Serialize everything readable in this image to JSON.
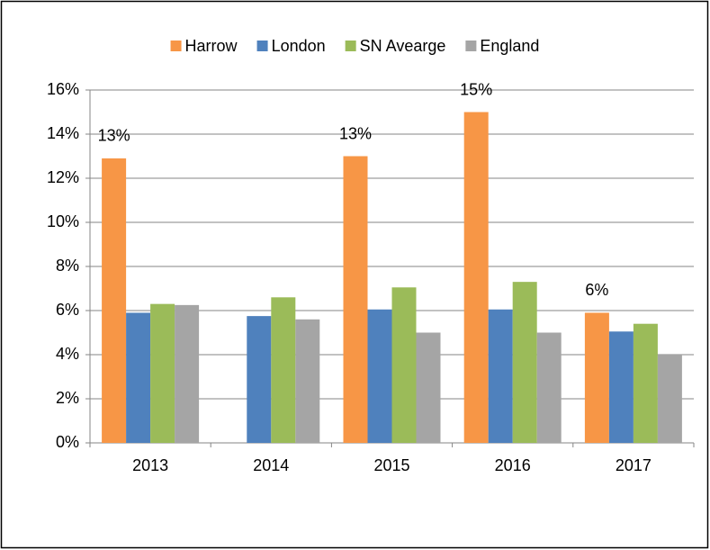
{
  "chart_data": {
    "type": "bar",
    "categories": [
      "2013",
      "2014",
      "2015",
      "2016",
      "2017"
    ],
    "series": [
      {
        "name": "Harrow",
        "color": "#f79646",
        "values": [
          12.9,
          null,
          13.0,
          15.0,
          5.9
        ],
        "value_labels": [
          "13%",
          null,
          "13%",
          "15%",
          "6%"
        ]
      },
      {
        "name": "London",
        "color": "#4f81bd",
        "values": [
          5.9,
          5.75,
          6.05,
          6.05,
          5.05
        ]
      },
      {
        "name": "SN Avearge",
        "color": "#9bbb59",
        "values": [
          6.3,
          6.6,
          7.05,
          7.3,
          5.4
        ]
      },
      {
        "name": "England",
        "color": "#a5a5a5",
        "values": [
          6.25,
          5.6,
          5.0,
          5.0,
          4.0
        ]
      }
    ],
    "ylim": [
      0,
      16
    ],
    "yticks": [
      {
        "value": 0,
        "label": "0%"
      },
      {
        "value": 2,
        "label": "2%"
      },
      {
        "value": 4,
        "label": "4%"
      },
      {
        "value": 6,
        "label": "6%"
      },
      {
        "value": 8,
        "label": "8%"
      },
      {
        "value": 10,
        "label": "10%"
      },
      {
        "value": 12,
        "label": "12%"
      },
      {
        "value": 14,
        "label": "14%"
      },
      {
        "value": 16,
        "label": "16%"
      }
    ],
    "grid": true,
    "legend": "top"
  }
}
